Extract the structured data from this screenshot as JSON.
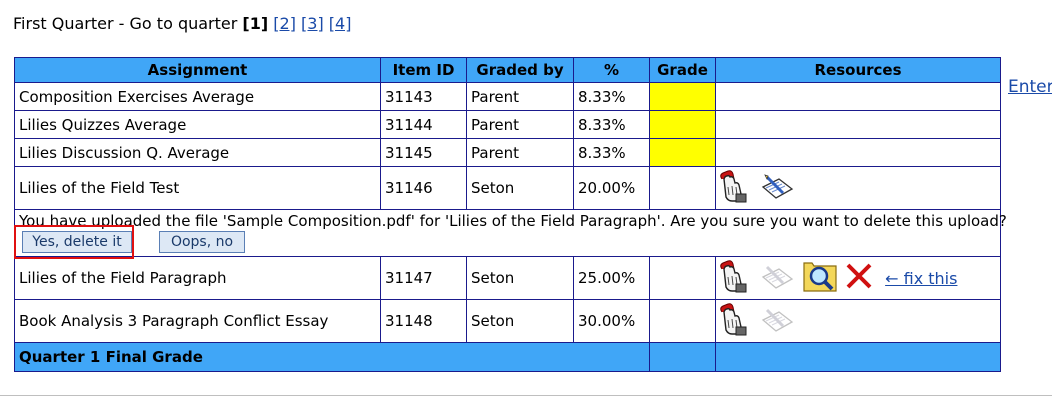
{
  "quarter_nav": {
    "title": "First Quarter - Go to quarter",
    "current": "[1]",
    "links": [
      "[2]",
      "[3]",
      "[4]"
    ]
  },
  "enter_link": "Enter",
  "table": {
    "headers": [
      "Assignment",
      "Item ID",
      "Graded by",
      "%",
      "Grade",
      "Resources"
    ],
    "rows": [
      {
        "assignment": "Composition Exercises Average",
        "item_id": "31143",
        "graded_by": "Parent",
        "percent": "8.33%"
      },
      {
        "assignment": "Lilies Quizzes Average",
        "item_id": "31144",
        "graded_by": "Parent",
        "percent": "8.33%"
      },
      {
        "assignment": "Lilies Discussion Q. Average",
        "item_id": "31145",
        "graded_by": "Parent",
        "percent": "8.33%"
      },
      {
        "assignment": "Lilies of the Field Test",
        "item_id": "31146",
        "graded_by": "Seton",
        "percent": "20.00%"
      },
      {
        "assignment": "Lilies of the Field Paragraph",
        "item_id": "31147",
        "graded_by": "Seton",
        "percent": "25.00%"
      },
      {
        "assignment": "Book Analysis 3 Paragraph Conflict Essay",
        "item_id": "31148",
        "graded_by": "Seton",
        "percent": "30.00%"
      }
    ],
    "confirm": {
      "message": "You have uploaded the file 'Sample Composition.pdf' for 'Lilies of the Field Paragraph'.  Are you sure you want to delete this upload?",
      "yes_label": "Yes, delete it",
      "no_label": "Oops, no"
    },
    "fix_link": "← fix this",
    "final_label": "Quarter 1 Final Grade"
  },
  "colors": {
    "header_bg": "#40a6f7",
    "grade_pending": "#ffff00",
    "highlight_box": "#e01010",
    "link": "#1a4aa8"
  },
  "icons": {
    "upload": "hand-upload-icon",
    "notepad": "notepad-pencil-icon",
    "view": "magnifier-view-icon",
    "delete": "red-x-delete-icon"
  }
}
